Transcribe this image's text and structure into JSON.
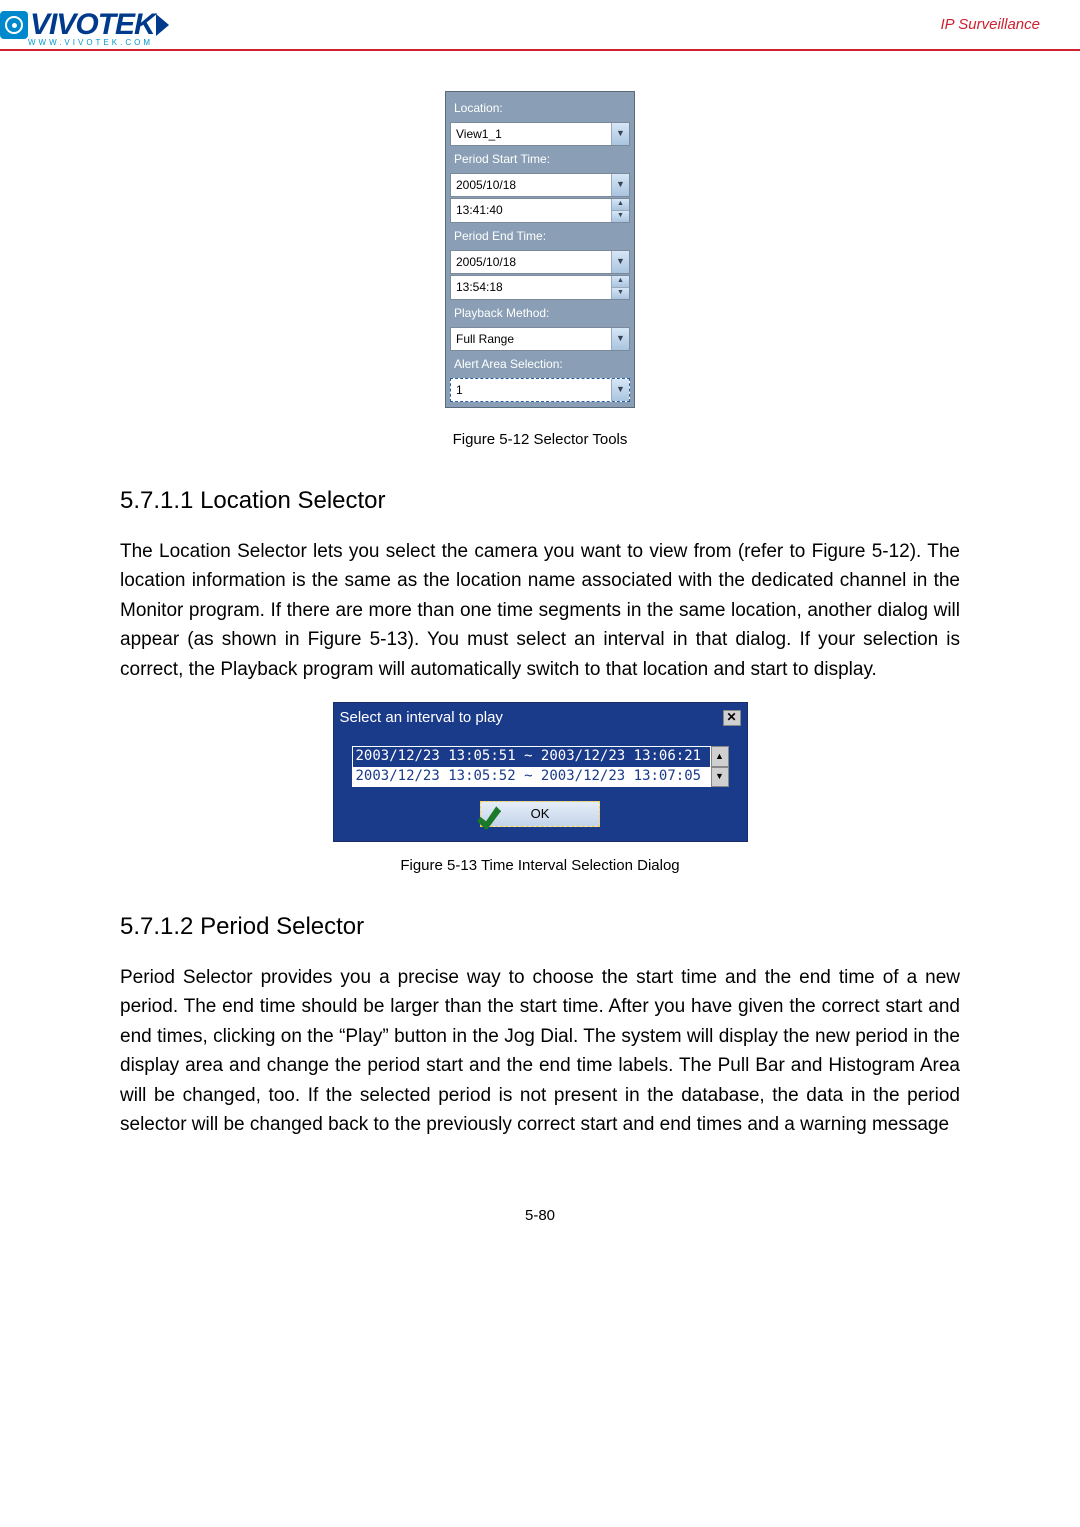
{
  "header": {
    "logo_text": "VIVOTEK",
    "logo_color": "#003a8c",
    "logo_accent": "#0099cc",
    "logo_url": "WWW.VIVOTEK.COM",
    "ip_surv": "IP Surveillance",
    "ip_surv_color": "#d02030",
    "underline_color": "#d02030"
  },
  "selector": {
    "bg": "#8a9fb5",
    "labels": {
      "location": "Location:",
      "period_start": "Period Start Time:",
      "period_end": "Period End Time:",
      "playback_method": "Playback Method:",
      "alert_area": "Alert Area Selection:"
    },
    "location_value": "View1_1",
    "start_date": "2005/10/18",
    "start_time": "13:41:40",
    "end_date": "2005/10/18",
    "end_time": "13:54:18",
    "playback_value": "Full Range",
    "alert_value": "1"
  },
  "captions": {
    "fig12": "Figure 5-12 Selector Tools",
    "fig13": "Figure 5-13 Time Interval Selection Dialog"
  },
  "sections": {
    "loc_head": "5.7.1.1  Location Selector",
    "loc_para": "The Location Selector lets you select the camera you want to view from (refer to Figure 5-12). The location information is the same as the location name associated with the dedicated channel in the Monitor program. If there are more than one time segments in the same location, another dialog will appear (as shown in Figure 5-13). You must select an interval in that dialog. If your selection is correct, the Playback program will automatically switch to that location and start to display.",
    "per_head": "5.7.1.2  Period Selector",
    "per_para": "Period Selector provides you a precise way to choose the start time and the end time of a new period. The end time should be larger than the start time. After you have given the correct start and end times, clicking on the “Play” button in the Jog Dial. The system will display the new period in the display area and change the period start and the end time labels. The Pull Bar and Histogram Area will be changed, too. If the selected period is not present in the database, the data in the period selector will be changed back to the previously correct start and end times and a warning message"
  },
  "interval": {
    "title": "Select an interval to play",
    "item_selected": "2003/12/23 13:05:51 ~ 2003/12/23 13:06:21",
    "item_2": "2003/12/23 13:05:52 ~ 2003/12/23 13:07:05",
    "ok_label": "OK"
  },
  "page_num": "5-80"
}
